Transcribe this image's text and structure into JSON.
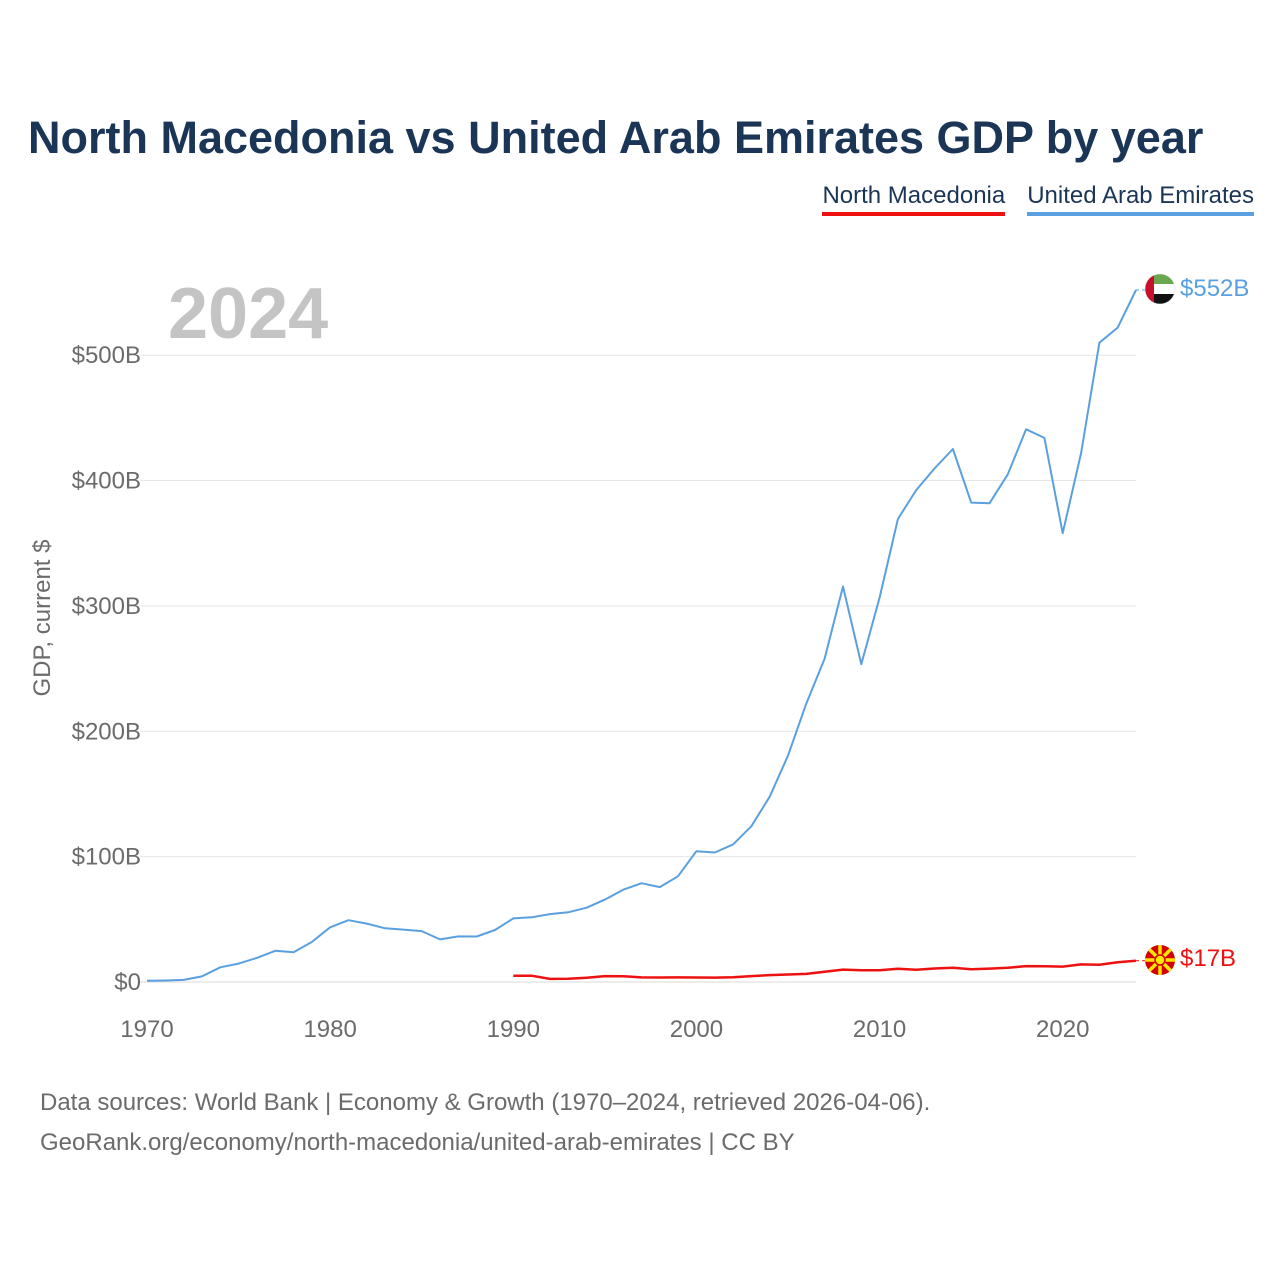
{
  "title": "North Macedonia vs United Arab Emirates GDP by year",
  "legend": [
    {
      "label": "North Macedonia",
      "color": "#ee1111"
    },
    {
      "label": "United Arab Emirates",
      "color": "#5aa0e0"
    }
  ],
  "year_label": "2024",
  "source_line1": "Data sources: World Bank | Economy & Growth (1970–2024, retrieved 2026-04-06).",
  "source_line2": "GeoRank.org/economy/north-macedonia/united-arab-emirates | CC BY",
  "chart_data": {
    "type": "line",
    "title": "North Macedonia vs United Arab Emirates GDP by year",
    "xlabel": "",
    "ylabel": "GDP, current $",
    "xlim": [
      1970,
      2024
    ],
    "ylim": [
      0,
      560
    ],
    "y_unit": "billion USD",
    "grid": true,
    "x_ticks": [
      1970,
      1980,
      1990,
      2000,
      2010,
      2020
    ],
    "y_ticks": [
      0,
      100,
      200,
      300,
      400,
      500
    ],
    "y_tick_labels": [
      "$0",
      "$100B",
      "$200B",
      "$300B",
      "$400B",
      "$500B"
    ],
    "series": [
      {
        "name": "United Arab Emirates",
        "color": "#5aa0e0",
        "end_label": "$552B",
        "flag": "uae-flag",
        "x": [
          1970,
          1971,
          1972,
          1973,
          1974,
          1975,
          1976,
          1977,
          1978,
          1979,
          1980,
          1981,
          1982,
          1983,
          1984,
          1985,
          1986,
          1987,
          1988,
          1989,
          1990,
          1991,
          1992,
          1993,
          1994,
          1995,
          1996,
          1997,
          1998,
          1999,
          2000,
          2001,
          2002,
          2003,
          2004,
          2005,
          2006,
          2007,
          2008,
          2009,
          2010,
          2011,
          2012,
          2013,
          2014,
          2015,
          2016,
          2017,
          2018,
          2019,
          2020,
          2021,
          2022,
          2023,
          2024
        ],
        "y": [
          1,
          1.2,
          1.7,
          4.5,
          11.7,
          14.7,
          19.2,
          24.9,
          23.8,
          31.9,
          43.6,
          49.3,
          46.6,
          42.8,
          41.8,
          40.6,
          34.0,
          36.4,
          36.3,
          41.5,
          50.7,
          51.6,
          54.2,
          55.6,
          59.3,
          65.7,
          73.6,
          78.8,
          75.7,
          84.4,
          104.3,
          103.3,
          109.8,
          124.3,
          147.8,
          180.6,
          222.1,
          257.9,
          315.5,
          253.5,
          306.6,
          369.3,
          392.4,
          409.6,
          425.2,
          382.4,
          381.9,
          405.0,
          440.9,
          434.0,
          358.0,
          422.0,
          510.0,
          522.0,
          552.0
        ]
      },
      {
        "name": "North Macedonia",
        "color": "#ee1111",
        "end_label": "$17B",
        "flag": "north-macedonia-flag",
        "x": [
          1990,
          1991,
          1992,
          1993,
          1994,
          1995,
          1996,
          1997,
          1998,
          1999,
          2000,
          2001,
          2002,
          2003,
          2004,
          2005,
          2006,
          2007,
          2008,
          2009,
          2010,
          2011,
          2012,
          2013,
          2014,
          2015,
          2016,
          2017,
          2018,
          2019,
          2020,
          2021,
          2022,
          2023,
          2024
        ],
        "y": [
          5.0,
          5.0,
          2.5,
          2.6,
          3.4,
          4.7,
          4.6,
          3.7,
          3.6,
          3.7,
          3.6,
          3.5,
          3.8,
          4.7,
          5.5,
          6.0,
          6.5,
          8.2,
          9.9,
          9.4,
          9.4,
          10.5,
          9.7,
          10.8,
          11.4,
          10.1,
          10.7,
          11.3,
          12.7,
          12.6,
          12.3,
          14.0,
          13.7,
          15.8,
          17.0
        ]
      }
    ]
  }
}
